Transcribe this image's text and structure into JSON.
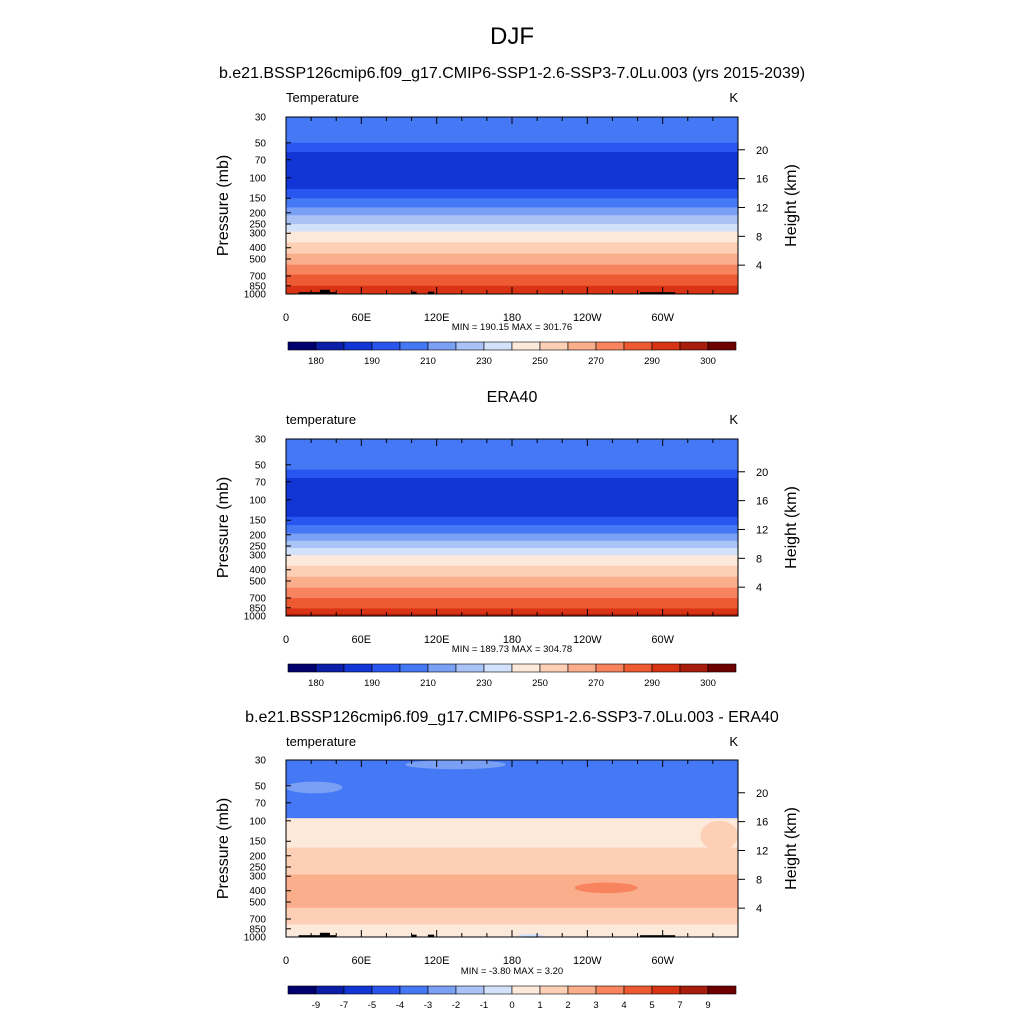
{
  "figure": {
    "title": "DJF",
    "subtitle": "b.e21.BSSP126cmip6.f09_g17.CMIP6-SSP1-2.6-SSP3-7.0Lu.003 (yrs 2015-2039)"
  },
  "colors": {
    "scale": [
      "#00006e",
      "#0a1ea8",
      "#1235d6",
      "#2a56f0",
      "#4478f5",
      "#7aa0f5",
      "#a9c3f7",
      "#d1e2fa",
      "#fde9da",
      "#fdcfb5",
      "#fbae8c",
      "#f7845e",
      "#ee5a32",
      "#d93315",
      "#a81c0c",
      "#6e0000"
    ],
    "topography": "#000000"
  },
  "chart_data": [
    {
      "type": "heatmap",
      "title": "",
      "left_label": "Temperature",
      "units": "K",
      "ylabel": "Pressure (mb)",
      "ylabel_right": "Height (km)",
      "pressure_ticks": [
        "30",
        "50",
        "70",
        "100",
        "150",
        "200",
        "250",
        "300",
        "400",
        "500",
        "700",
        "850",
        "1000"
      ],
      "pressure_values": [
        30,
        50,
        70,
        100,
        150,
        200,
        250,
        300,
        400,
        500,
        700,
        850,
        1000
      ],
      "height_ticks": [
        20,
        16,
        12,
        8,
        4
      ],
      "x_ticks": [
        "0",
        "60E",
        "120E",
        "180",
        "120W",
        "60W"
      ],
      "x_values": [
        0,
        60,
        120,
        180,
        240,
        300
      ],
      "xlim": [
        0,
        360
      ],
      "stats": "MIN = 190.15  MAX = 301.76",
      "colorbar_labels": [
        "180",
        "190",
        "210",
        "230",
        "250",
        "270",
        "290",
        "300"
      ],
      "level_colors": [
        {
          "p": 30,
          "c": 4
        },
        {
          "p": 40,
          "c": 4
        },
        {
          "p": 50,
          "c": 3
        },
        {
          "p": 60,
          "c": 2
        },
        {
          "p": 110,
          "c": 2
        },
        {
          "p": 125,
          "c": 3
        },
        {
          "p": 150,
          "c": 4
        },
        {
          "p": 180,
          "c": 5
        },
        {
          "p": 210,
          "c": 6
        },
        {
          "p": 250,
          "c": 7
        },
        {
          "p": 290,
          "c": 8
        },
        {
          "p": 360,
          "c": 9
        },
        {
          "p": 450,
          "c": 10
        },
        {
          "p": 560,
          "c": 11
        },
        {
          "p": 680,
          "c": 12
        },
        {
          "p": 850,
          "c": 13
        },
        {
          "p": 1000,
          "c": 14
        }
      ],
      "extra_blobs": [],
      "topography": [
        {
          "lon0": 10,
          "lon1": 40,
          "p0": 965
        },
        {
          "lon0": 27,
          "lon1": 35,
          "p0": 920
        },
        {
          "lon0": 100,
          "lon1": 104,
          "p0": 955
        },
        {
          "lon0": 113,
          "lon1": 118,
          "p0": 955
        },
        {
          "lon0": 282,
          "lon1": 310,
          "p0": 965
        }
      ]
    },
    {
      "type": "heatmap",
      "title": "ERA40",
      "left_label": "temperature",
      "units": "K",
      "ylabel": "Pressure (mb)",
      "ylabel_right": "Height (km)",
      "pressure_ticks": [
        "30",
        "50",
        "70",
        "100",
        "150",
        "200",
        "250",
        "300",
        "400",
        "500",
        "700",
        "850",
        "1000"
      ],
      "pressure_values": [
        30,
        50,
        70,
        100,
        150,
        200,
        250,
        300,
        400,
        500,
        700,
        850,
        1000
      ],
      "height_ticks": [
        20,
        16,
        12,
        8,
        4
      ],
      "x_ticks": [
        "0",
        "60E",
        "120E",
        "180",
        "120W",
        "60W"
      ],
      "x_values": [
        0,
        60,
        120,
        180,
        240,
        300
      ],
      "xlim": [
        0,
        360
      ],
      "stats": "MIN = 189.73  MAX = 304.78",
      "colorbar_labels": [
        "180",
        "190",
        "210",
        "230",
        "250",
        "270",
        "290",
        "300"
      ],
      "level_colors": [
        {
          "p": 30,
          "c": 4
        },
        {
          "p": 40,
          "c": 4
        },
        {
          "p": 55,
          "c": 3
        },
        {
          "p": 65,
          "c": 2
        },
        {
          "p": 125,
          "c": 2
        },
        {
          "p": 140,
          "c": 3
        },
        {
          "p": 165,
          "c": 4
        },
        {
          "p": 195,
          "c": 5
        },
        {
          "p": 225,
          "c": 6
        },
        {
          "p": 260,
          "c": 7
        },
        {
          "p": 300,
          "c": 8
        },
        {
          "p": 370,
          "c": 9
        },
        {
          "p": 460,
          "c": 10
        },
        {
          "p": 570,
          "c": 11
        },
        {
          "p": 700,
          "c": 12
        },
        {
          "p": 860,
          "c": 13
        },
        {
          "p": 960,
          "c": 14
        },
        {
          "p": 1000,
          "c": 15
        }
      ],
      "extra_blobs": [],
      "topography": []
    },
    {
      "type": "heatmap",
      "title": "b.e21.BSSP126cmip6.f09_g17.CMIP6-SSP1-2.6-SSP3-7.0Lu.003 - ERA40",
      "left_label": "temperature",
      "units": "K",
      "ylabel": "Pressure (mb)",
      "ylabel_right": "Height (km)",
      "pressure_ticks": [
        "30",
        "50",
        "70",
        "100",
        "150",
        "200",
        "250",
        "300",
        "400",
        "500",
        "700",
        "850",
        "1000"
      ],
      "pressure_values": [
        30,
        50,
        70,
        100,
        150,
        200,
        250,
        300,
        400,
        500,
        700,
        850,
        1000
      ],
      "height_ticks": [
        20,
        16,
        12,
        8,
        4
      ],
      "x_ticks": [
        "0",
        "60E",
        "120E",
        "180",
        "120W",
        "60W"
      ],
      "x_values": [
        0,
        60,
        120,
        180,
        240,
        300
      ],
      "xlim": [
        0,
        360
      ],
      "stats": "MIN =  -3.80  MAX =   3.20",
      "colorbar_labels": [
        "-9",
        "-7",
        "-5",
        "-4",
        "-3",
        "-2",
        "-1",
        "0",
        "1",
        "2",
        "3",
        "4",
        "5",
        "7",
        "9"
      ],
      "level_colors": [
        {
          "p": 30,
          "c": 4
        },
        {
          "p": 95,
          "c": 8
        },
        {
          "p": 170,
          "c": 9
        },
        {
          "p": 290,
          "c": 10
        },
        {
          "p": 560,
          "c": 9
        },
        {
          "p": 780,
          "c": 8
        },
        {
          "p": 1000,
          "c": 8
        }
      ],
      "extra_blobs": [
        {
          "lon0": 0,
          "lon1": 45,
          "p0": 46,
          "p1": 58,
          "c": 5
        },
        {
          "lon0": 95,
          "lon1": 175,
          "p0": 30,
          "p1": 36,
          "c": 5
        },
        {
          "lon0": 230,
          "lon1": 280,
          "p0": 340,
          "p1": 420,
          "c": 11
        },
        {
          "lon0": 330,
          "lon1": 360,
          "p0": 100,
          "p1": 180,
          "c": 9
        },
        {
          "lon0": 185,
          "lon1": 205,
          "p0": 960,
          "p1": 1000,
          "c": 7
        }
      ],
      "topography": [
        {
          "lon0": 10,
          "lon1": 40,
          "p0": 965
        },
        {
          "lon0": 27,
          "lon1": 35,
          "p0": 920
        },
        {
          "lon0": 100,
          "lon1": 104,
          "p0": 955
        },
        {
          "lon0": 113,
          "lon1": 118,
          "p0": 955
        },
        {
          "lon0": 282,
          "lon1": 310,
          "p0": 965
        }
      ]
    }
  ]
}
